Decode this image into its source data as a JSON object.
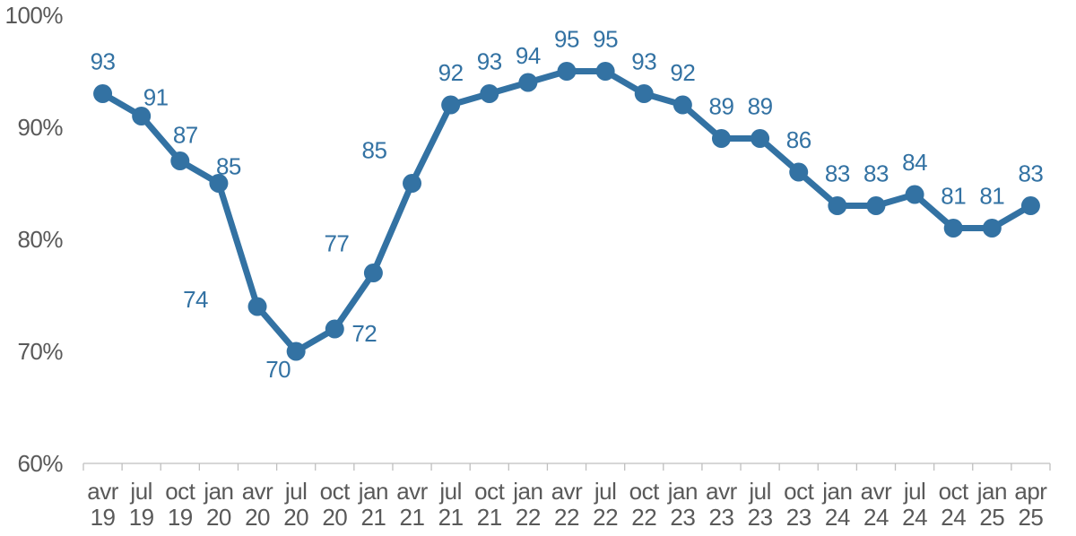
{
  "chart_data": {
    "type": "line",
    "title": "",
    "xlabel": "",
    "ylabel": "",
    "grid": false,
    "legend": "none",
    "ylim": [
      60,
      100
    ],
    "categories": [
      {
        "month": "avr",
        "year": "19"
      },
      {
        "month": "jul",
        "year": "19"
      },
      {
        "month": "oct",
        "year": "19"
      },
      {
        "month": "jan",
        "year": "20"
      },
      {
        "month": "avr",
        "year": "20"
      },
      {
        "month": "jul",
        "year": "20"
      },
      {
        "month": "oct",
        "year": "20"
      },
      {
        "month": "jan",
        "year": "21"
      },
      {
        "month": "avr",
        "year": "21"
      },
      {
        "month": "jul",
        "year": "21"
      },
      {
        "month": "oct",
        "year": "21"
      },
      {
        "month": "jan",
        "year": "22"
      },
      {
        "month": "avr",
        "year": "22"
      },
      {
        "month": "jul",
        "year": "22"
      },
      {
        "month": "oct",
        "year": "22"
      },
      {
        "month": "jan",
        "year": "23"
      },
      {
        "month": "avr",
        "year": "23"
      },
      {
        "month": "jul",
        "year": "23"
      },
      {
        "month": "oct",
        "year": "23"
      },
      {
        "month": "jan",
        "year": "24"
      },
      {
        "month": "avr",
        "year": "24"
      },
      {
        "month": "jul",
        "year": "24"
      },
      {
        "month": "oct",
        "year": "24"
      },
      {
        "month": "jan",
        "year": "25"
      },
      {
        "month": "apr",
        "year": "25"
      }
    ],
    "values": [
      93,
      91,
      87,
      85,
      74,
      70,
      72,
      77,
      85,
      92,
      93,
      94,
      95,
      95,
      93,
      92,
      89,
      89,
      86,
      83,
      83,
      84,
      81,
      81,
      83
    ],
    "data_labels": [
      "93",
      "91",
      "87",
      "85",
      "74",
      "70",
      "72",
      "77",
      "85",
      "92",
      "93",
      "94",
      "95",
      "95",
      "93",
      "92",
      "89",
      "89",
      "86",
      "83",
      "83",
      "84",
      "81",
      "81",
      "83"
    ],
    "y_ticks": [
      {
        "value": 100,
        "label": "100%"
      },
      {
        "value": 90,
        "label": "90%"
      },
      {
        "value": 80,
        "label": "80%"
      },
      {
        "value": 70,
        "label": "70%"
      },
      {
        "value": 60,
        "label": "60%"
      }
    ],
    "colors": {
      "line": "#3372A3",
      "marker": "#3372A3",
      "data_label": "#3372A3",
      "axis_text": "#595959",
      "axis_line": "#BFBFBF"
    },
    "label_offsets": {
      "default": [
        0,
        -36
      ],
      "1": [
        16,
        -21
      ],
      "2": [
        6,
        -29
      ],
      "3": [
        11,
        -19
      ],
      "4": [
        -69,
        -8
      ],
      "5": [
        -20,
        20
      ],
      "6": [
        33,
        5
      ],
      "7": [
        -41,
        -33
      ],
      "8": [
        -42,
        -37
      ],
      "11": [
        0,
        -30
      ]
    }
  }
}
